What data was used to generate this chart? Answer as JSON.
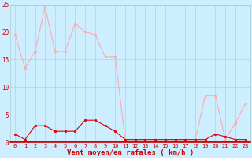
{
  "avg_wind": [
    1.5,
    0.5,
    3.0,
    3.0,
    2.0,
    2.0,
    2.0,
    4.0,
    4.0,
    3.0,
    2.0,
    0.5,
    0.5,
    0.5,
    0.5,
    0.5,
    0.5,
    0.5,
    0.5,
    0.5,
    1.5,
    1.0,
    0.5,
    0.5
  ],
  "gust_wind": [
    19.5,
    13.5,
    16.5,
    24.5,
    16.5,
    16.5,
    21.5,
    20.0,
    19.5,
    15.5,
    15.5,
    0.5,
    0.5,
    0.5,
    0.5,
    0.5,
    0.5,
    0.5,
    0.5,
    8.5,
    8.5,
    0.5,
    3.5,
    7.0
  ],
  "hours": [
    0,
    1,
    2,
    3,
    4,
    5,
    6,
    7,
    8,
    9,
    10,
    11,
    12,
    13,
    14,
    15,
    16,
    17,
    18,
    19,
    20,
    21,
    22,
    23
  ],
  "line_color_avg": "#dd0000",
  "line_color_gust": "#ffaaaa",
  "bg_color": "#cceeff",
  "grid_color": "#aacccc",
  "xlabel": "Vent moyen/en rafales ( km/h )",
  "ylim": [
    0,
    25
  ],
  "yticks": [
    0,
    5,
    10,
    15,
    20,
    25
  ],
  "xlabel_color": "#cc0000",
  "tick_color": "#cc0000",
  "tick_fontsize": 5.0,
  "xlabel_fontsize": 6.5
}
